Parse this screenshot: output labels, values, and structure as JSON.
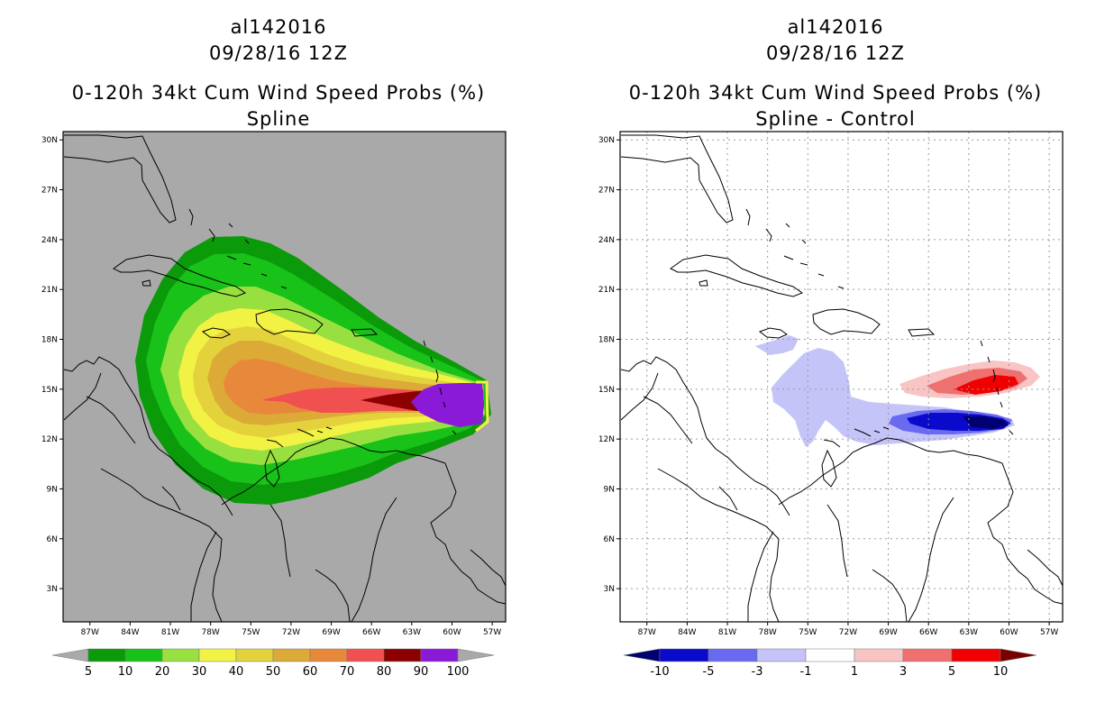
{
  "left": {
    "storm_id": "al142016",
    "datetime": "09/28/16 12Z",
    "title": "0-120h 34kt Cum Wind Speed Probs (%)",
    "subtitle": "Spline",
    "background": "#a9a9a9",
    "legend": {
      "labels": [
        "5",
        "10",
        "20",
        "30",
        "40",
        "50",
        "60",
        "70",
        "80",
        "90",
        "100"
      ],
      "colors": [
        "#0a9a0a",
        "#18c218",
        "#98e040",
        "#f2f244",
        "#e4d23c",
        "#dcaa36",
        "#e8883a",
        "#f05050",
        "#8c0000",
        "#8a1ad8"
      ],
      "end_color_low": "#a9a9a9",
      "end_color_high": "#a9a9a9"
    }
  },
  "right": {
    "storm_id": "al142016",
    "datetime": "09/28/16 12Z",
    "title": "0-120h 34kt Cum Wind Speed Probs (%)",
    "subtitle": "Spline - Control",
    "background": "#ffffff",
    "legend": {
      "labels": [
        "-10",
        "-5",
        "-3",
        "-1",
        "1",
        "3",
        "5",
        "10"
      ],
      "colors": [
        "#0a0acc",
        "#6a6af0",
        "#c4c4f8",
        "#ffffff",
        "#f8c4c4",
        "#f07070",
        "#f00000"
      ],
      "end_color_low": "#000070",
      "end_color_high": "#7a0000"
    }
  },
  "axes": {
    "lat_labels": [
      "30N",
      "27N",
      "24N",
      "21N",
      "18N",
      "15N",
      "12N",
      "9N",
      "6N",
      "3N"
    ],
    "lon_labels": [
      "87W",
      "84W",
      "81W",
      "78W",
      "75W",
      "72W",
      "69W",
      "66W",
      "63W",
      "60W",
      "57W"
    ]
  }
}
